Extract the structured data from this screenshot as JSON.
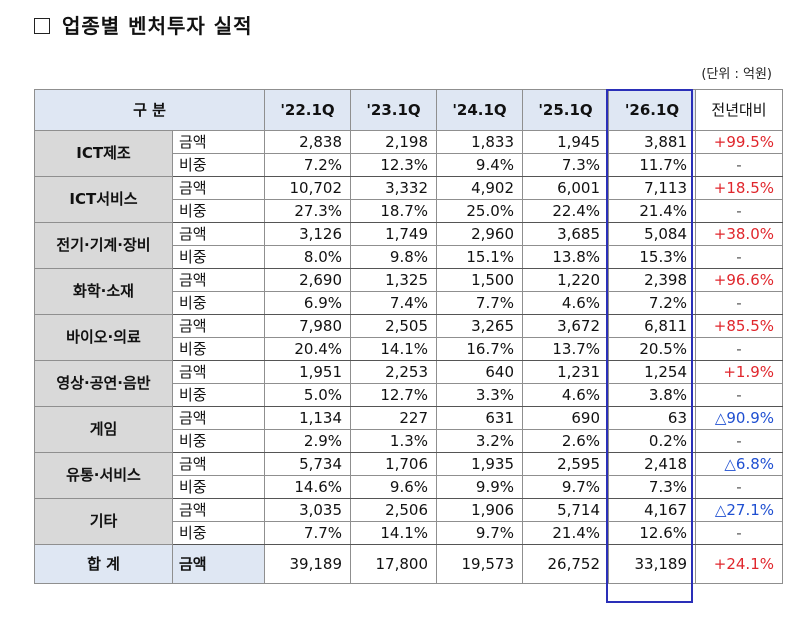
{
  "title": "업종별 벤처투자 실적",
  "unit": "(단위 : 억원)",
  "headers": {
    "category": "구  분",
    "periods": [
      "'22.1Q",
      "'23.1Q",
      "'24.1Q",
      "'25.1Q",
      "'26.1Q"
    ],
    "yoy": "전년대비"
  },
  "rows": [
    {
      "name": "ICT제조",
      "amount_label": "금액",
      "share_label": "비중",
      "amount": [
        "2,838",
        "2,198",
        "1,833",
        "1,945",
        "3,881"
      ],
      "amount_yoy": "+99.5%",
      "amount_yoy_dir": "pos",
      "share": [
        "7.2%",
        "12.3%",
        "9.4%",
        "7.3%",
        "11.7%"
      ],
      "share_yoy": "-"
    },
    {
      "name": "ICT서비스",
      "amount_label": "금액",
      "share_label": "비중",
      "amount": [
        "10,702",
        "3,332",
        "4,902",
        "6,001",
        "7,113"
      ],
      "amount_yoy": "+18.5%",
      "amount_yoy_dir": "pos",
      "share": [
        "27.3%",
        "18.7%",
        "25.0%",
        "22.4%",
        "21.4%"
      ],
      "share_yoy": "-"
    },
    {
      "name": "전기·기계·장비",
      "amount_label": "금액",
      "share_label": "비중",
      "amount": [
        "3,126",
        "1,749",
        "2,960",
        "3,685",
        "5,084"
      ],
      "amount_yoy": "+38.0%",
      "amount_yoy_dir": "pos",
      "share": [
        "8.0%",
        "9.8%",
        "15.1%",
        "13.8%",
        "15.3%"
      ],
      "share_yoy": "-"
    },
    {
      "name": "화학·소재",
      "amount_label": "금액",
      "share_label": "비중",
      "amount": [
        "2,690",
        "1,325",
        "1,500",
        "1,220",
        "2,398"
      ],
      "amount_yoy": "+96.6%",
      "amount_yoy_dir": "pos",
      "share": [
        "6.9%",
        "7.4%",
        "7.7%",
        "4.6%",
        "7.2%"
      ],
      "share_yoy": "-"
    },
    {
      "name": "바이오·의료",
      "amount_label": "금액",
      "share_label": "비중",
      "amount": [
        "7,980",
        "2,505",
        "3,265",
        "3,672",
        "6,811"
      ],
      "amount_yoy": "+85.5%",
      "amount_yoy_dir": "pos",
      "share": [
        "20.4%",
        "14.1%",
        "16.7%",
        "13.7%",
        "20.5%"
      ],
      "share_yoy": "-"
    },
    {
      "name": "영상·공연·음반",
      "amount_label": "금액",
      "share_label": "비중",
      "amount": [
        "1,951",
        "2,253",
        "640",
        "1,231",
        "1,254"
      ],
      "amount_yoy": "+1.9%",
      "amount_yoy_dir": "pos",
      "share": [
        "5.0%",
        "12.7%",
        "3.3%",
        "4.6%",
        "3.8%"
      ],
      "share_yoy": "-"
    },
    {
      "name": "게임",
      "amount_label": "금액",
      "share_label": "비중",
      "amount": [
        "1,134",
        "227",
        "631",
        "690",
        "63"
      ],
      "amount_yoy": "△90.9%",
      "amount_yoy_dir": "neg",
      "share": [
        "2.9%",
        "1.3%",
        "3.2%",
        "2.6%",
        "0.2%"
      ],
      "share_yoy": "-"
    },
    {
      "name": "유통·서비스",
      "amount_label": "금액",
      "share_label": "비중",
      "amount": [
        "5,734",
        "1,706",
        "1,935",
        "2,595",
        "2,418"
      ],
      "amount_yoy": "△6.8%",
      "amount_yoy_dir": "neg",
      "share": [
        "14.6%",
        "9.6%",
        "9.9%",
        "9.7%",
        "7.3%"
      ],
      "share_yoy": "-"
    },
    {
      "name": "기타",
      "amount_label": "금액",
      "share_label": "비중",
      "amount": [
        "3,035",
        "2,506",
        "1,906",
        "5,714",
        "4,167"
      ],
      "amount_yoy": "△27.1%",
      "amount_yoy_dir": "neg",
      "share": [
        "7.7%",
        "14.1%",
        "9.7%",
        "21.4%",
        "12.6%"
      ],
      "share_yoy": "-"
    }
  ],
  "total": {
    "name": "합  계",
    "label": "금액",
    "amount": [
      "39,189",
      "17,800",
      "19,573",
      "26,752",
      "33,189"
    ],
    "yoy": "+24.1%"
  },
  "colors": {
    "positive": "#e0262c",
    "negative": "#1f4fd1",
    "header_bg": "#dfe7f3",
    "category_bg": "#d9d9d9",
    "highlight_border": "#2a2fb8"
  }
}
